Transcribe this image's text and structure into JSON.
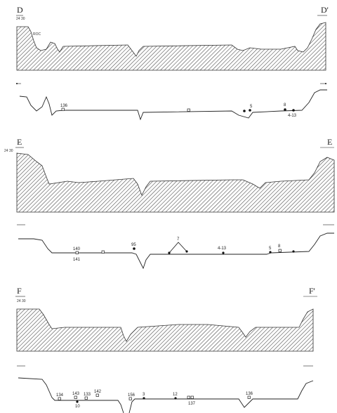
{
  "sections": [
    {
      "id": "D",
      "label_left": "D",
      "label_right": "D'",
      "scale_left": "24 30",
      "scale_right": "",
      "sectional_inset": "ROC",
      "markers": [
        "136",
        "5",
        "8",
        "4-13"
      ]
    },
    {
      "id": "E",
      "label_left": "E",
      "label_right": "E",
      "scale_left": "24 30",
      "scale_right": "",
      "sectional_inset": "",
      "markers": [
        "140",
        "141",
        "95",
        "7",
        "4-13",
        "5",
        "8"
      ]
    },
    {
      "id": "F",
      "label_left": "F",
      "label_right": "F'",
      "scale_left": "24 30",
      "scale_right": "",
      "sectional_inset": "",
      "markers": [
        "134",
        "10",
        "143",
        "133",
        "142",
        "156",
        "3",
        "12",
        "137",
        "136"
      ]
    }
  ],
  "colors": {
    "ink": "#222222",
    "paper": "#ffffff"
  }
}
